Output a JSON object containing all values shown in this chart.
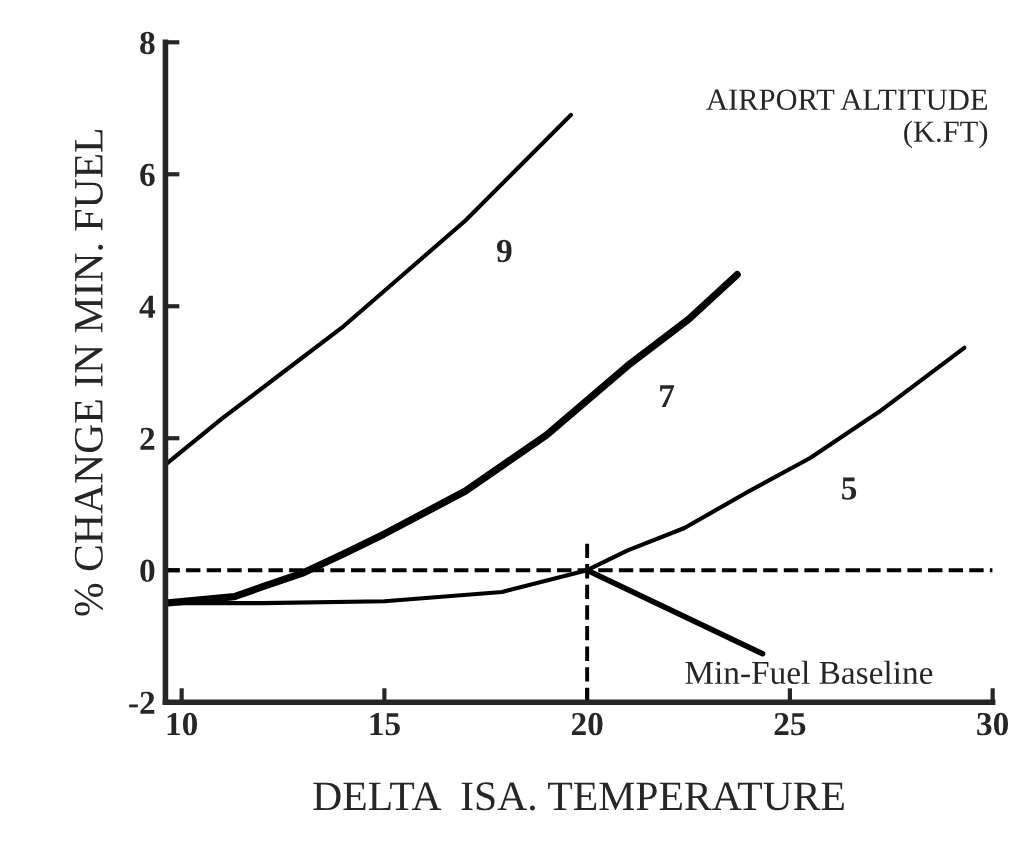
{
  "chart_data": {
    "type": "line",
    "xlabel": "DELTA  ISA. TEMPERATURE",
    "ylabel": "% CHANGE IN MIN. FUEL",
    "xlim": [
      9.6,
      30
    ],
    "ylim": [
      -2,
      8
    ],
    "xticks": [
      10,
      15,
      20,
      25,
      30
    ],
    "yticks": [
      -2,
      0,
      2,
      4,
      6,
      8
    ],
    "grid": false,
    "marker": "none",
    "line_style": "solid",
    "series": [
      {
        "name": "9",
        "color": "#000000",
        "x": [
          9.6,
          11,
          12.5,
          14,
          15.5,
          17,
          18.3,
          19.6
        ],
        "values": [
          1.6,
          2.3,
          3.0,
          3.7,
          4.5,
          5.3,
          6.1,
          6.9
        ]
      },
      {
        "name": "7",
        "color": "#000000",
        "x": [
          9.6,
          11.3,
          12,
          13,
          14,
          15,
          17,
          19,
          21,
          22.5,
          23.7
        ],
        "values": [
          -0.5,
          -0.4,
          -0.25,
          -0.04,
          0.25,
          0.55,
          1.2,
          2.05,
          3.1,
          3.8,
          4.48
        ]
      },
      {
        "name": "5",
        "color": "#000000",
        "x": [
          9.6,
          12,
          15,
          17.9,
          20,
          21,
          22.4,
          24,
          25.5,
          27.2,
          29.3
        ],
        "values": [
          -0.5,
          -0.5,
          -0.47,
          -0.33,
          0,
          0.3,
          0.64,
          1.2,
          1.7,
          2.4,
          3.37
        ]
      }
    ],
    "ref_lines": [
      {
        "axis": "y",
        "value": 0,
        "line_style": "dashed",
        "color": "#000000"
      },
      {
        "axis": "x",
        "value": 20,
        "line_style": "dashed",
        "color": "#000000"
      }
    ],
    "annotations": [
      {
        "text": "Min-Fuel Baseline",
        "x": 20,
        "y": 0
      },
      "AIRPORT ALTITUDE\n(K.FT)"
    ]
  }
}
